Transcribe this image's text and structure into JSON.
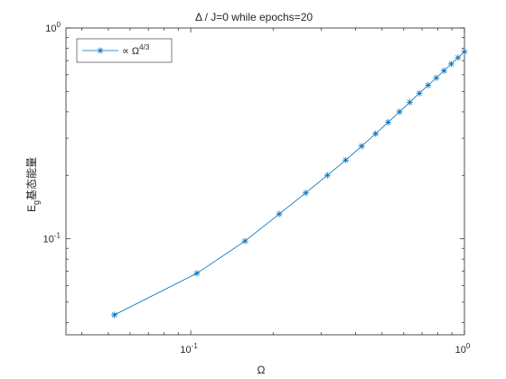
{
  "chart_data": {
    "type": "line",
    "title": "Δ / J=0 while epochs=20",
    "xlabel": "Ω",
    "ylabel": "E",
    "ylabel_subscript": "g",
    "ylabel_suffix": "基态能量",
    "xscale": "log",
    "yscale": "log",
    "xlim": [
      0.035,
      1.0
    ],
    "ylim": [
      0.035,
      1.0
    ],
    "xticks": [
      {
        "value": 0.1,
        "base": "10",
        "exp": "-1"
      },
      {
        "value": 1.0,
        "base": "10",
        "exp": "0"
      }
    ],
    "yticks": [
      {
        "value": 0.1,
        "base": "10",
        "exp": "-1"
      },
      {
        "value": 1.0,
        "base": "10",
        "exp": "0"
      }
    ],
    "grid": false,
    "legend_position": "top-left",
    "series": [
      {
        "name": "∝ Ω",
        "name_superscript": "4/3",
        "color": "#0072BD",
        "marker": "*",
        "x": [
          0.0526,
          0.1053,
          0.1579,
          0.2105,
          0.2632,
          0.3158,
          0.3684,
          0.4211,
          0.4737,
          0.5263,
          0.5789,
          0.6316,
          0.6842,
          0.7368,
          0.7895,
          0.8421,
          0.8947,
          0.9474,
          1.0
        ],
        "y": [
          0.0435,
          0.0685,
          0.0975,
          0.131,
          0.165,
          0.2,
          0.236,
          0.275,
          0.315,
          0.357,
          0.4,
          0.444,
          0.49,
          0.535,
          0.58,
          0.627,
          0.675,
          0.723,
          0.772
        ]
      }
    ]
  }
}
